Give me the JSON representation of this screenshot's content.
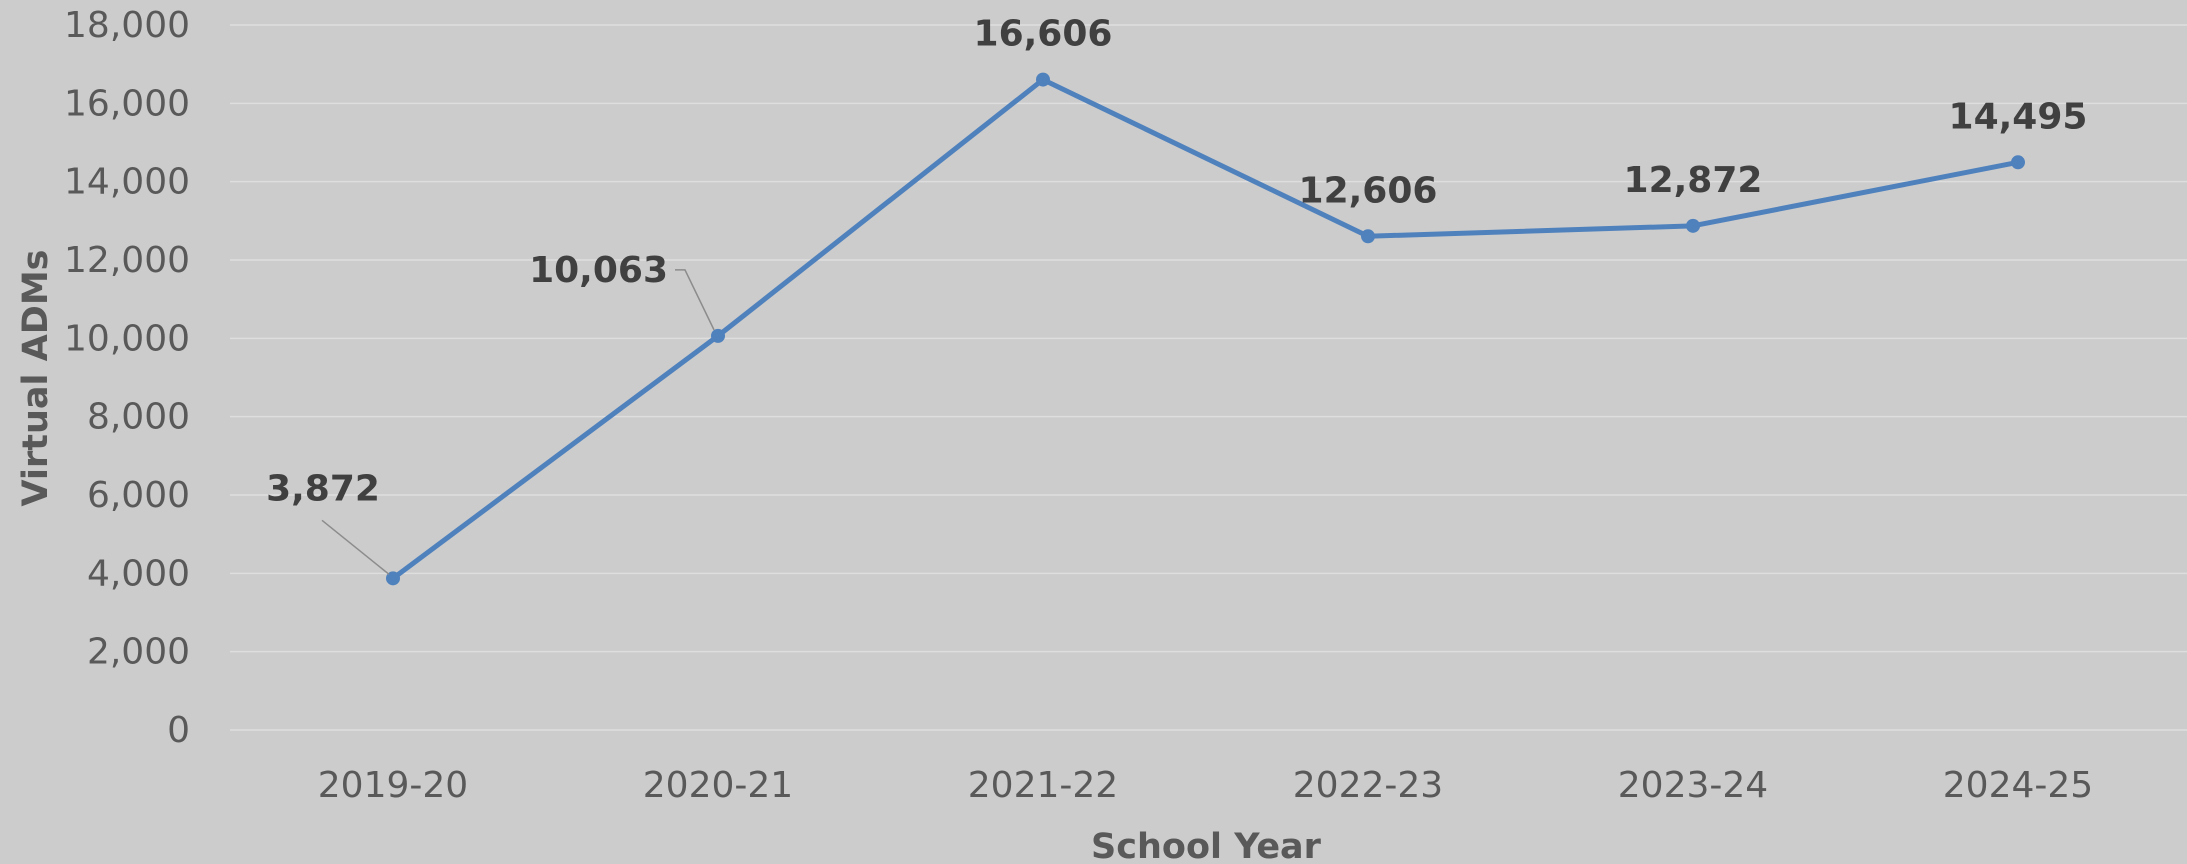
{
  "chart_data": {
    "type": "line",
    "title": "",
    "xlabel": "School Year",
    "ylabel": "Virtual ADMs",
    "categories": [
      "2019-20",
      "2020-21",
      "2021-22",
      "2022-23",
      "2023-24",
      "2024-25"
    ],
    "series": [
      {
        "values": [
          3872,
          10063,
          16606,
          12606,
          12872,
          14495
        ],
        "data_labels": [
          "3,872",
          "10,063",
          "16,606",
          "12,606",
          "12,872",
          "14,495"
        ],
        "color": "#4f81bd"
      }
    ],
    "ylim": [
      0,
      18000
    ],
    "yticks": [
      0,
      2000,
      4000,
      6000,
      8000,
      10000,
      12000,
      14000,
      16000,
      18000
    ],
    "ytick_labels": [
      "0",
      "2,000",
      "4,000",
      "6,000",
      "8,000",
      "10,000",
      "12,000",
      "14,000",
      "16,000",
      "18,000"
    ],
    "grid": true,
    "legend": "none",
    "background": "#cccccc"
  }
}
